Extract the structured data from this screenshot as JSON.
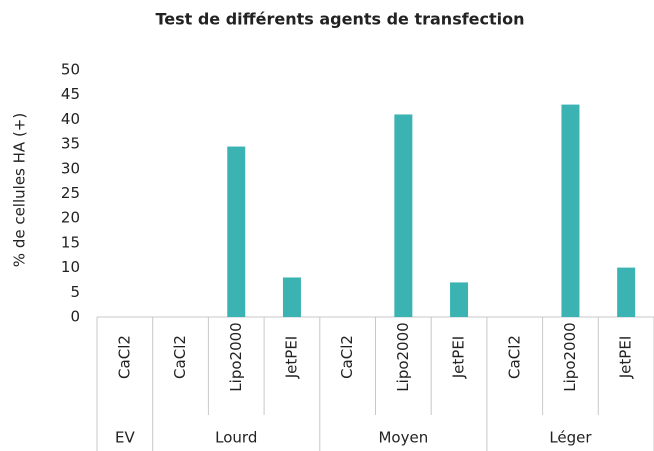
{
  "chart_data": {
    "type": "bar",
    "title": "Test de différents agents de transfection",
    "y_label": "% de cellules HA (+)",
    "color": "#3bb3b3",
    "groups": [
      {
        "name": "EV",
        "categories": [
          "CaCl2"
        ],
        "values": [
          0
        ]
      },
      {
        "name": "Lourd",
        "categories": [
          "CaCl2",
          "Lipo2000",
          "JetPEI"
        ],
        "values": [
          0,
          34.5,
          8
        ]
      },
      {
        "name": "Moyen",
        "categories": [
          "CaCl2",
          "Lipo2000",
          "JetPEI"
        ],
        "values": [
          0,
          41,
          7
        ]
      },
      {
        "name": "Léger",
        "categories": [
          "CaCl2",
          "Lipo2000",
          "JetPEI"
        ],
        "values": [
          0,
          43,
          10
        ]
      }
    ],
    "ylim": [
      0,
      50
    ],
    "yticks": [
      0,
      5,
      10,
      15,
      20,
      25,
      30,
      35,
      40,
      45,
      50
    ],
    "grid": false
  }
}
